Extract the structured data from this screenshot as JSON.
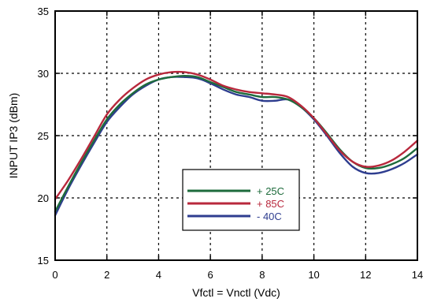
{
  "chart_data": {
    "type": "line",
    "xlabel": "Vfctl = Vnctl (Vdc)",
    "ylabel": "INPUT IP3 (dBm)",
    "xlim": [
      0,
      14
    ],
    "ylim": [
      15,
      35
    ],
    "xticks": [
      0,
      2,
      4,
      6,
      8,
      10,
      12,
      14
    ],
    "yticks": [
      15,
      20,
      25,
      30,
      35
    ],
    "grid": true,
    "legend_position": "lower-center",
    "series": [
      {
        "name": "+ 25C",
        "color": "#1e6b3c",
        "x": [
          0,
          0.5,
          1,
          1.5,
          2,
          2.5,
          3,
          3.5,
          4,
          4.5,
          5,
          5.5,
          6,
          6.5,
          7,
          7.5,
          8,
          8.5,
          9,
          9.5,
          10,
          10.5,
          11,
          11.5,
          12,
          12.5,
          13,
          13.5,
          14
        ],
        "y": [
          18.9,
          20.9,
          22.8,
          24.6,
          26.3,
          27.5,
          28.4,
          29.1,
          29.5,
          29.7,
          29.8,
          29.7,
          29.3,
          28.9,
          28.5,
          28.3,
          28.1,
          28.1,
          27.9,
          27.3,
          26.4,
          25.2,
          23.9,
          22.9,
          22.4,
          22.4,
          22.7,
          23.2,
          24.0
        ]
      },
      {
        "name": "+ 85C",
        "color": "#b8283c",
        "x": [
          0,
          0.5,
          1,
          1.5,
          2,
          2.5,
          3,
          3.5,
          4,
          4.5,
          5,
          5.5,
          6,
          6.5,
          7,
          7.5,
          8,
          8.5,
          9,
          9.5,
          10,
          10.5,
          11,
          11.5,
          12,
          12.5,
          13,
          13.5,
          14
        ],
        "y": [
          19.9,
          21.4,
          23.1,
          24.9,
          26.7,
          27.9,
          28.8,
          29.5,
          29.9,
          30.1,
          30.1,
          29.9,
          29.5,
          29.0,
          28.7,
          28.5,
          28.4,
          28.3,
          28.1,
          27.4,
          26.4,
          25.1,
          23.8,
          22.9,
          22.5,
          22.6,
          23.0,
          23.7,
          24.6
        ]
      },
      {
        "name": "- 40C",
        "color": "#2e3d8f",
        "x": [
          0,
          0.5,
          1,
          1.5,
          2,
          2.5,
          3,
          3.5,
          4,
          4.5,
          5,
          5.5,
          6,
          6.5,
          7,
          7.5,
          8,
          8.5,
          9,
          9.5,
          10,
          10.5,
          11,
          11.5,
          12,
          12.5,
          13,
          13.5,
          14
        ],
        "y": [
          18.6,
          20.7,
          22.6,
          24.4,
          26.1,
          27.3,
          28.3,
          29.0,
          29.5,
          29.7,
          29.7,
          29.6,
          29.2,
          28.7,
          28.3,
          28.1,
          27.8,
          27.8,
          27.9,
          27.3,
          26.3,
          25.0,
          23.6,
          22.5,
          22.0,
          22.0,
          22.3,
          22.8,
          23.5
        ]
      }
    ]
  }
}
